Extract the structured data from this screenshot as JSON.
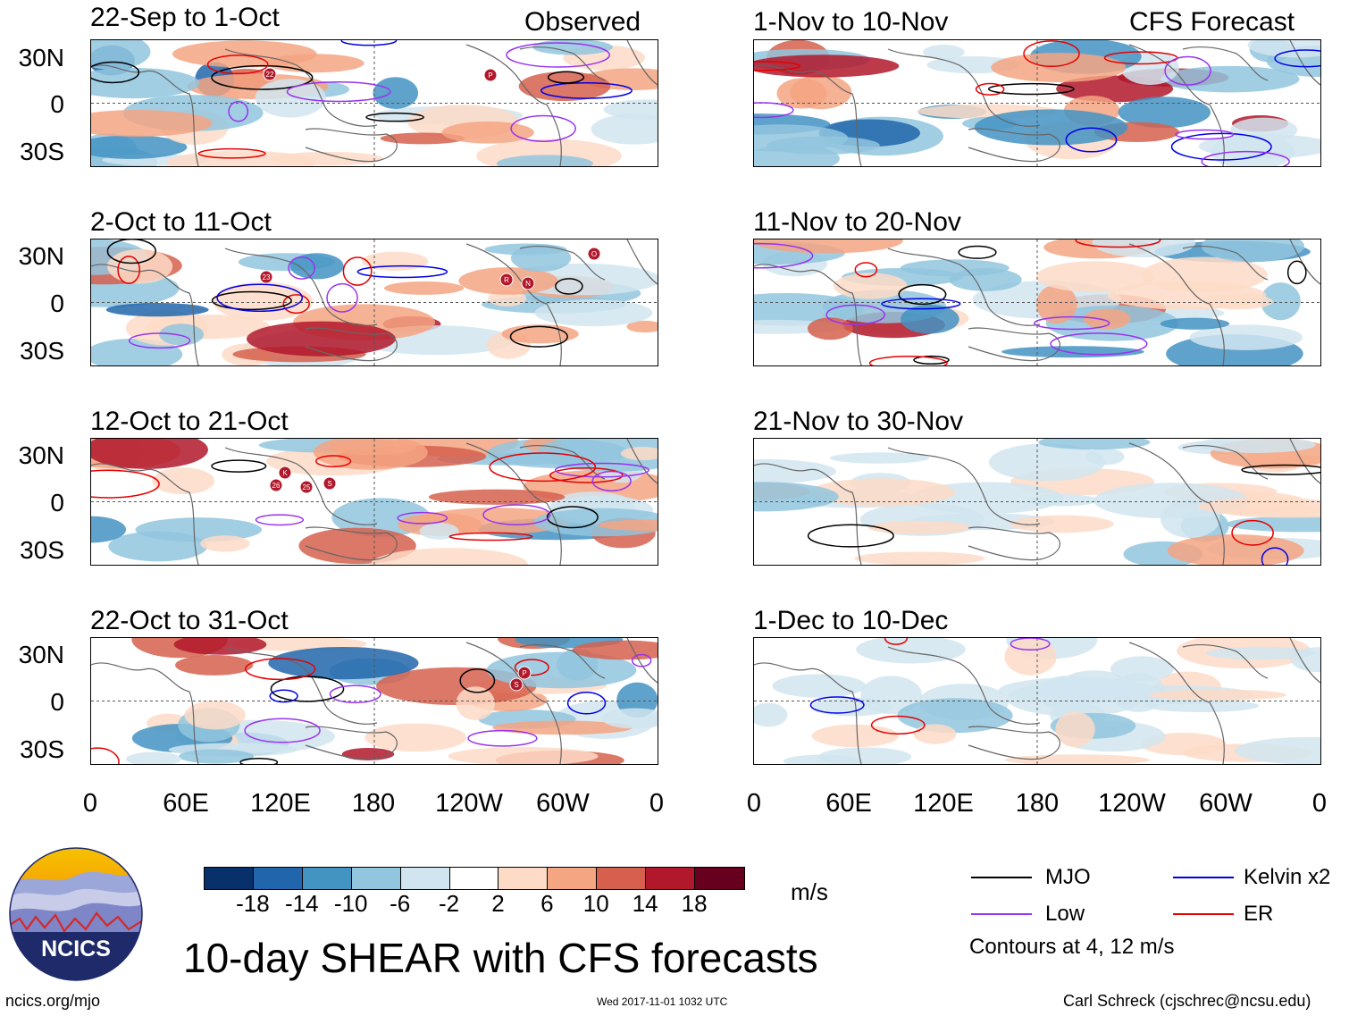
{
  "left_header": "Observed",
  "right_header": "CFS Forecast",
  "panels_left": [
    {
      "title": "22-Sep to 1-Oct"
    },
    {
      "title": "2-Oct to 11-Oct"
    },
    {
      "title": "12-Oct to 21-Oct"
    },
    {
      "title": "22-Oct to 31-Oct"
    }
  ],
  "panels_right": [
    {
      "title": "1-Nov to 10-Nov"
    },
    {
      "title": "11-Nov to 20-Nov"
    },
    {
      "title": "21-Nov to 30-Nov"
    },
    {
      "title": "1-Dec to 10-Dec"
    }
  ],
  "lat_labels": [
    "30N",
    "0",
    "30S"
  ],
  "lon_labels": [
    "0",
    "60E",
    "120E",
    "180",
    "120W",
    "60W",
    "0"
  ],
  "storm_markers": {
    "p1": [
      "22",
      "P"
    ],
    "p2": [
      "23",
      "R",
      "N",
      "O"
    ],
    "p3": [
      "K",
      "26",
      "25",
      "S"
    ],
    "p4": [
      "P",
      "S"
    ]
  },
  "colorbar": {
    "colors": [
      "#08306b",
      "#2166ac",
      "#4393c3",
      "#92c5de",
      "#d1e5f0",
      "#ffffff",
      "#fddbc7",
      "#f4a582",
      "#d6604d",
      "#b2182b",
      "#67001f"
    ],
    "labels": [
      "-18",
      "-14",
      "-10",
      "-6",
      "-2",
      "2",
      "6",
      "10",
      "14",
      "18"
    ],
    "units": "m/s"
  },
  "main_title": "10-day SHEAR with CFS forecasts",
  "legend": {
    "items": [
      {
        "label": "MJO",
        "color": "#000000"
      },
      {
        "label": "Kelvin x2",
        "color": "#0000e6"
      },
      {
        "label": "Low",
        "color": "#9933ee"
      },
      {
        "label": "ER",
        "color": "#e60000"
      }
    ],
    "note": "Contours at 4, 12 m/s"
  },
  "logo": {
    "text": "NCICS"
  },
  "footer": {
    "url": "ncics.org/mjo",
    "timestamp": "Wed 2017-11-01 1032 UTC",
    "credit": "Carl Schreck (cjschrec@ncsu.edu)"
  }
}
